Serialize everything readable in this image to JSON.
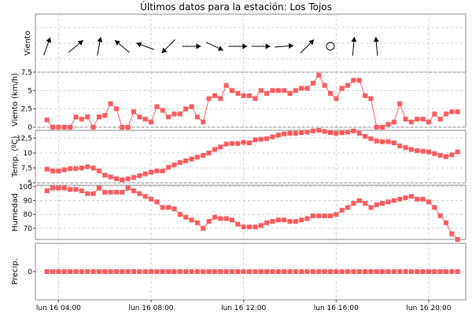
{
  "title": "Últimos datos para la estación: Los Tojos",
  "colors": {
    "series": "#ff5a5f",
    "grid": "#cfcfcf",
    "frame": "#888888"
  },
  "chart_data": {
    "type": "line",
    "x_hours": [
      3.5,
      3.75,
      4.0,
      4.25,
      4.5,
      4.75,
      5.0,
      5.25,
      5.5,
      5.75,
      6.0,
      6.25,
      6.5,
      6.75,
      7.0,
      7.25,
      7.5,
      7.75,
      8.0,
      8.25,
      8.5,
      8.75,
      9.0,
      9.25,
      9.5,
      9.75,
      10.0,
      10.25,
      10.5,
      10.75,
      11.0,
      11.25,
      11.5,
      11.75,
      12.0,
      12.25,
      12.5,
      12.75,
      13.0,
      13.25,
      13.5,
      13.75,
      14.0,
      14.25,
      14.5,
      14.75,
      15.0,
      15.25,
      15.5,
      15.75,
      16.0,
      16.25,
      16.5,
      16.75,
      17.0,
      17.25,
      17.5,
      17.75,
      18.0,
      18.25,
      18.5,
      18.75,
      19.0,
      19.25,
      19.5,
      19.75,
      20.0,
      20.25,
      20.5,
      20.75,
      21.0,
      21.25
    ],
    "x_ticks": [
      {
        "label": "lun 16 04:00",
        "hour": 4
      },
      {
        "label": "lun 16 08:00",
        "hour": 8
      },
      {
        "label": "lun 16 12:00",
        "hour": 12
      },
      {
        "label": "lun 16 16:00",
        "hour": 16
      },
      {
        "label": "lun 16 20:00",
        "hour": 20
      }
    ],
    "x_range": [
      3.0,
      21.6
    ],
    "panels": [
      {
        "name": "Viento",
        "ylabel": "Viento",
        "kind": "arrows",
        "arrows": [
          {
            "hour": 3.5,
            "dir_deg": 20,
            "len": 1.0
          },
          {
            "hour": 4.75,
            "dir_deg": 50,
            "len": 1.0
          },
          {
            "hour": 5.75,
            "dir_deg": 10,
            "len": 1.0
          },
          {
            "hour": 6.75,
            "dir_deg": -50,
            "len": 1.0
          },
          {
            "hour": 7.75,
            "dir_deg": -70,
            "len": 1.0
          },
          {
            "hour": 8.75,
            "dir_deg": 225,
            "len": 1.0
          },
          {
            "hour": 9.75,
            "dir_deg": 90,
            "len": 1.0
          },
          {
            "hour": 10.75,
            "dir_deg": 115,
            "len": 1.0
          },
          {
            "hour": 11.75,
            "dir_deg": 90,
            "len": 1.0
          },
          {
            "hour": 12.75,
            "dir_deg": 90,
            "len": 1.0
          },
          {
            "hour": 13.75,
            "dir_deg": 85,
            "len": 1.0
          },
          {
            "hour": 14.75,
            "dir_deg": 45,
            "len": 1.0
          },
          {
            "hour": 15.75,
            "calm": true
          },
          {
            "hour": 16.75,
            "dir_deg": 5,
            "len": 1.0
          },
          {
            "hour": 17.75,
            "dir_deg": -5,
            "len": 1.0
          }
        ]
      },
      {
        "name": "Viento (km/h)",
        "ylabel": "Viento (km/h)",
        "kind": "line",
        "ylim": [
          0,
          7.5
        ],
        "yticks": [
          {
            "v": 0,
            "label": "0"
          },
          {
            "v": 2.5,
            "label": "2,5"
          },
          {
            "v": 5,
            "label": "5"
          },
          {
            "v": 7.5,
            "label": "7,5"
          }
        ],
        "values": [
          1.0,
          0.0,
          0.0,
          0.0,
          0.0,
          1.4,
          1.1,
          1.4,
          0.0,
          1.4,
          1.6,
          3.2,
          2.5,
          0.0,
          0.0,
          2.1,
          1.4,
          1.1,
          0.7,
          2.8,
          2.3,
          1.4,
          1.8,
          1.8,
          2.5,
          2.8,
          1.4,
          0.7,
          3.9,
          4.3,
          3.9,
          5.7,
          5.0,
          4.6,
          4.3,
          4.3,
          3.9,
          5.0,
          4.6,
          5.0,
          5.0,
          5.0,
          4.6,
          5.0,
          5.3,
          5.3,
          6.0,
          7.1,
          5.7,
          4.6,
          3.9,
          5.3,
          5.7,
          6.4,
          6.4,
          4.3,
          3.9,
          0.0,
          0.0,
          0.4,
          0.7,
          3.2,
          1.1,
          0.7,
          1.1,
          1.1,
          0.7,
          1.8,
          1.1,
          1.8,
          2.1,
          2.1
        ]
      },
      {
        "name": "Temp. (ºC)",
        "ylabel": "Temp. (ºC)",
        "kind": "line",
        "ylim": [
          5,
          13.8
        ],
        "yticks": [
          {
            "v": 5,
            "label": "5"
          },
          {
            "v": 7.5,
            "label": "7,5"
          },
          {
            "v": 10,
            "label": "10"
          },
          {
            "v": 12.5,
            "label": "12,5"
          }
        ],
        "values": [
          7.3,
          7.0,
          7.0,
          7.2,
          7.4,
          7.4,
          7.5,
          7.7,
          7.5,
          7.0,
          6.3,
          6.0,
          5.7,
          5.5,
          5.7,
          5.9,
          6.2,
          6.5,
          6.8,
          7.0,
          7.0,
          7.6,
          8.0,
          8.4,
          8.7,
          9.0,
          9.3,
          9.6,
          10.0,
          10.6,
          11.0,
          11.5,
          11.6,
          11.6,
          11.8,
          11.7,
          12.2,
          12.3,
          12.4,
          12.7,
          13.0,
          13.2,
          13.3,
          13.3,
          13.4,
          13.5,
          13.7,
          13.8,
          13.6,
          13.4,
          13.3,
          13.4,
          13.5,
          13.7,
          13.3,
          12.8,
          12.4,
          12.0,
          11.9,
          11.9,
          11.7,
          11.2,
          10.9,
          10.6,
          10.4,
          10.3,
          10.2,
          9.9,
          9.6,
          9.4,
          9.7,
          10.2
        ]
      },
      {
        "name": "Humedad",
        "ylabel": "Humedad",
        "kind": "line",
        "ylim": [
          62,
          101
        ],
        "yticks": [
          {
            "v": 70,
            "label": "70"
          },
          {
            "v": 80,
            "label": "80"
          },
          {
            "v": 90,
            "label": "90"
          },
          {
            "v": 100,
            "label": "100"
          }
        ],
        "values": [
          97,
          99,
          99,
          99,
          98,
          98,
          97,
          95,
          95,
          99,
          96,
          96,
          96,
          96,
          99,
          97,
          95,
          93,
          91,
          89,
          85,
          85,
          84,
          80,
          78,
          76,
          74,
          70,
          75,
          78,
          77,
          77,
          76,
          73,
          71,
          71,
          71,
          72,
          74,
          75,
          76,
          76,
          75,
          75,
          76,
          77,
          79,
          79,
          79,
          79,
          80,
          83,
          85,
          88,
          90,
          88,
          85,
          87,
          88,
          89,
          90,
          91,
          92,
          93,
          91,
          91,
          89,
          85,
          79,
          74,
          66,
          62
        ]
      },
      {
        "name": "Precip.",
        "ylabel": "Precip.",
        "kind": "line",
        "ylim": [
          -1,
          1
        ],
        "yticks": [
          {
            "v": 0,
            "label": "0"
          }
        ],
        "values": [
          0,
          0,
          0,
          0,
          0,
          0,
          0,
          0,
          0,
          0,
          0,
          0,
          0,
          0,
          0,
          0,
          0,
          0,
          0,
          0,
          0,
          0,
          0,
          0,
          0,
          0,
          0,
          0,
          0,
          0,
          0,
          0,
          0,
          0,
          0,
          0,
          0,
          0,
          0,
          0,
          0,
          0,
          0,
          0,
          0,
          0,
          0,
          0,
          0,
          0,
          0,
          0,
          0,
          0,
          0,
          0,
          0,
          0,
          0,
          0,
          0,
          0,
          0,
          0,
          0,
          0,
          0,
          0,
          0,
          0,
          0,
          0
        ]
      }
    ]
  }
}
